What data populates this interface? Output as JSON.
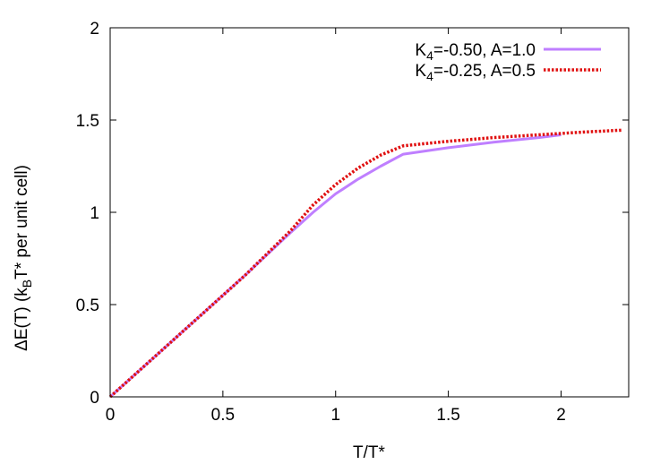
{
  "chart_data": {
    "type": "line",
    "xlabel": "T/T*",
    "ylabel": {
      "prefix": "ΔE(T) (k",
      "sub": "B",
      "suffix": "T* per unit cell)"
    },
    "xlim": [
      0,
      2.3
    ],
    "ylim": [
      0,
      2
    ],
    "x_ticks": [
      0,
      0.5,
      1,
      1.5,
      2
    ],
    "x_tick_labels": [
      "0",
      "0.5",
      "1",
      "1.5",
      "2"
    ],
    "y_ticks": [
      0,
      0.5,
      1,
      1.5,
      2
    ],
    "y_tick_labels": [
      "0",
      "0.5",
      "1",
      "1.5",
      "2"
    ],
    "grid": false,
    "legend_position": "top-right",
    "series": [
      {
        "legend": {
          "prefix": "K",
          "sub": "4",
          "suffix": "=-0.50, A=1.0"
        },
        "color": "#bf7fff",
        "style": "solid",
        "x": [
          0,
          0.2,
          0.4,
          0.6,
          0.8,
          0.9,
          1.0,
          1.1,
          1.2,
          1.3,
          1.5,
          1.7,
          1.9,
          2.0
        ],
        "y": [
          0,
          0.22,
          0.44,
          0.66,
          0.89,
          1.0,
          1.1,
          1.18,
          1.25,
          1.315,
          1.35,
          1.38,
          1.405,
          1.42
        ]
      },
      {
        "legend": {
          "prefix": "K",
          "sub": "4",
          "suffix": "=-0.25, A=0.5"
        },
        "color": "#e01010",
        "style": "dotted",
        "x": [
          0,
          0.2,
          0.4,
          0.6,
          0.8,
          0.9,
          1.0,
          1.1,
          1.2,
          1.3,
          1.5,
          1.7,
          1.9,
          2.1,
          2.27
        ],
        "y": [
          0,
          0.22,
          0.44,
          0.66,
          0.9,
          1.04,
          1.15,
          1.24,
          1.31,
          1.36,
          1.385,
          1.405,
          1.42,
          1.435,
          1.445
        ]
      }
    ]
  }
}
